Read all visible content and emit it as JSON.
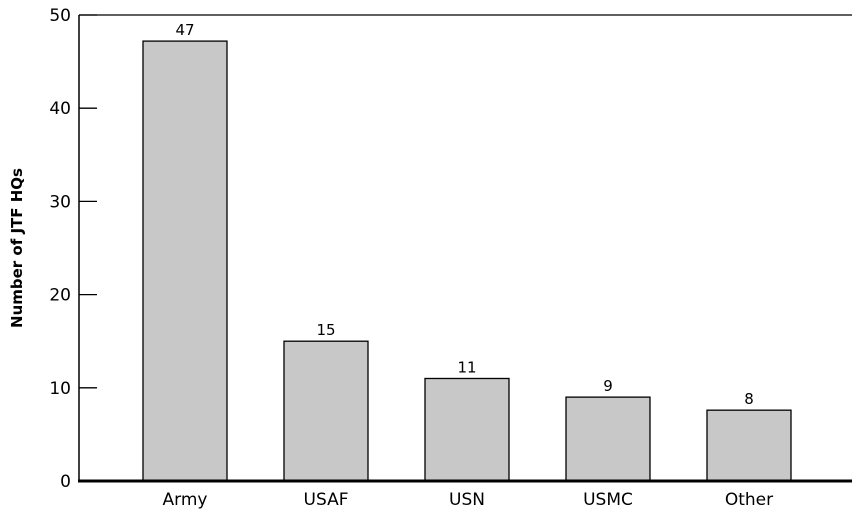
{
  "chart_data": {
    "type": "bar",
    "title": "",
    "xlabel": "",
    "ylabel": "Number of JTF HQs",
    "categories": [
      "Army",
      "USAF",
      "USN",
      "USMC",
      "Other"
    ],
    "values": [
      47,
      15,
      11,
      9,
      8
    ],
    "display_heights": [
      47.2,
      15,
      11,
      9,
      7.6
    ],
    "data_labels": [
      "47",
      "15",
      "11",
      "9",
      "8"
    ],
    "ylim": [
      0,
      50
    ],
    "yticks": [
      0,
      10,
      20,
      30,
      40,
      50
    ],
    "ytick_labels": [
      "0",
      "10",
      "20",
      "30",
      "40",
      "50"
    ],
    "grid": false,
    "legend": "none",
    "colors": {
      "bar_fill": "#c8c8c8",
      "bar_stroke": "#000000",
      "axis": "#000000"
    }
  }
}
